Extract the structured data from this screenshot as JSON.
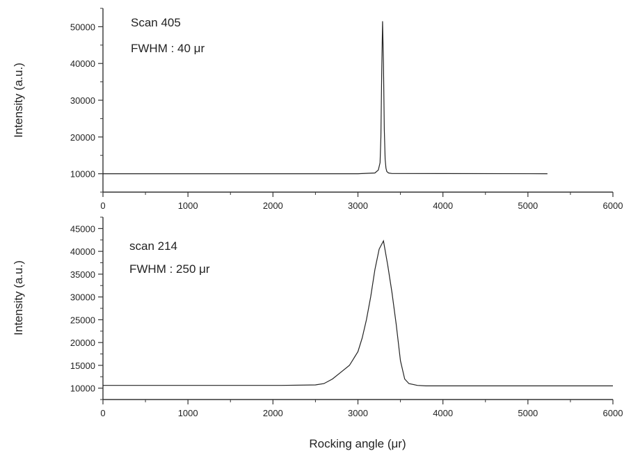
{
  "chart_data": [
    {
      "type": "line",
      "x_range": [
        0,
        6000
      ],
      "ylim": [
        5000,
        55000
      ],
      "xticks": [
        0,
        1000,
        2000,
        3000,
        4000,
        5000,
        6000
      ],
      "yticks": [
        10000,
        20000,
        30000,
        40000,
        50000
      ],
      "ylabel": "Intensity (a.u.)",
      "xlabel": "",
      "annotation_line1": "Scan 405",
      "annotation_line2": "FWHM : 40 μr",
      "grid": false,
      "series": [
        {
          "x": [
            0,
            3000,
            3200,
            3240,
            3260,
            3270,
            3280,
            3290,
            3300,
            3310,
            3320,
            3330,
            3340,
            3360,
            3400,
            5230
          ],
          "y": [
            10000,
            10000,
            10200,
            11000,
            13000,
            20000,
            38000,
            51500,
            40000,
            22000,
            14000,
            11500,
            10600,
            10200,
            10050,
            10000
          ]
        }
      ]
    },
    {
      "type": "line",
      "x_range": [
        0,
        6000
      ],
      "ylim": [
        7500,
        47500
      ],
      "xticks": [
        0,
        1000,
        2000,
        3000,
        4000,
        5000,
        6000
      ],
      "yticks": [
        10000,
        15000,
        20000,
        25000,
        30000,
        35000,
        40000,
        45000
      ],
      "ylabel": "Intensity (a.u.)",
      "xlabel": "Rocking angle (μr)",
      "annotation_line1": "scan 214",
      "annotation_line2": "FWHM : 250 μr",
      "grid": false,
      "series": [
        {
          "x": [
            0,
            2100,
            2500,
            2600,
            2700,
            2800,
            2900,
            3000,
            3050,
            3100,
            3150,
            3200,
            3250,
            3300,
            3350,
            3400,
            3450,
            3500,
            3550,
            3600,
            3700,
            3800,
            6000
          ],
          "y": [
            10600,
            10600,
            10700,
            11000,
            12000,
            13500,
            15000,
            18000,
            21000,
            25000,
            30000,
            36000,
            40500,
            42300,
            37000,
            31000,
            24000,
            16000,
            12000,
            11000,
            10600,
            10500,
            10500
          ]
        }
      ]
    }
  ]
}
